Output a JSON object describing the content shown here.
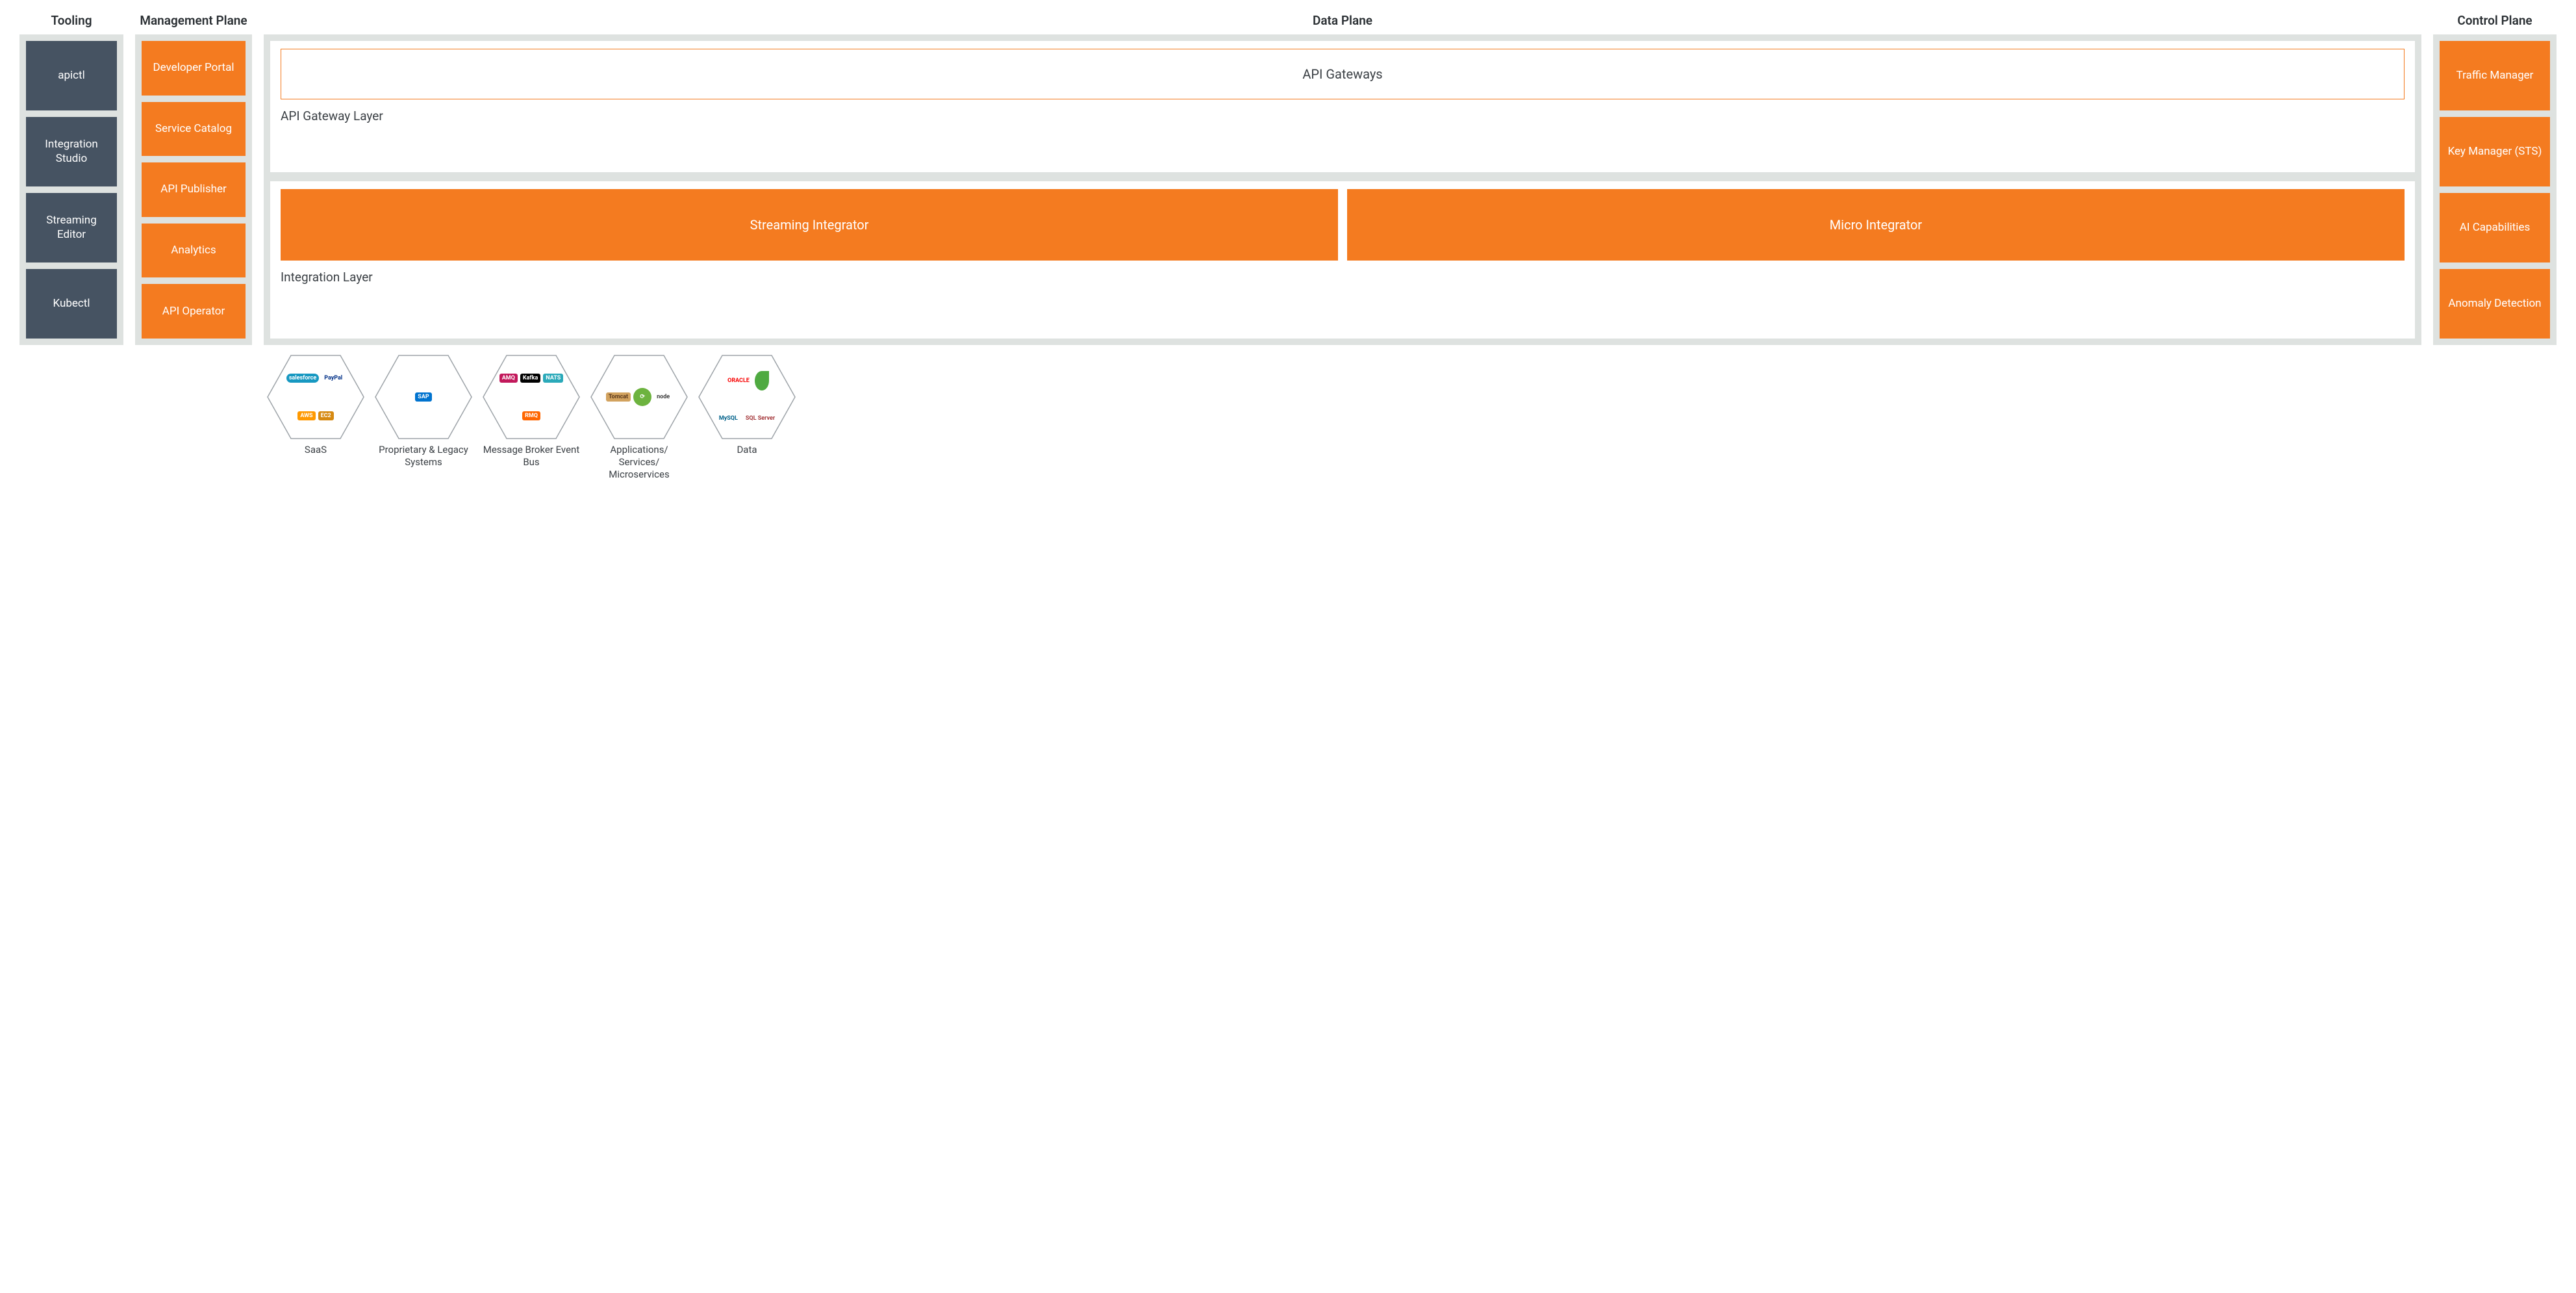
{
  "type": "architecture-diagram",
  "colors": {
    "panel_bg": "#dee2e0",
    "tooling_box_bg": "#465362",
    "orange": "#f47b20",
    "white": "#ffffff",
    "title_text": "#2a2f33",
    "layer_text": "#3b4045",
    "hex_border": "#9da3a8",
    "hex_label": "#3b4045"
  },
  "columns": {
    "tooling": {
      "title": "Tooling",
      "items": [
        "apictl",
        "Integration Studio",
        "Streaming Editor",
        "Kubectl"
      ]
    },
    "management": {
      "title": "Management Plane",
      "items": [
        "Developer Portal",
        "Service Catalog",
        "API Publisher",
        "Analytics",
        "API Operator"
      ]
    },
    "data": {
      "title": "Data Plane",
      "gateway_layer": {
        "box": "API Gateways",
        "label": "API Gateway Layer"
      },
      "integration_layer": {
        "boxes": [
          "Streaming Integrator",
          "Micro Integrator"
        ],
        "label": "Integration Layer"
      }
    },
    "control": {
      "title": "Control Plane",
      "items": [
        "Traffic Manager",
        "Key Manager (STS)",
        "AI Capabilities",
        "Anomaly Detection"
      ]
    }
  },
  "hexagons": [
    {
      "label": "SaaS",
      "logos": [
        {
          "text": "salesforce",
          "bg": "#1798c1",
          "fg": "#ffffff",
          "shape": "cloud"
        },
        {
          "text": "PayPal",
          "bg": "#ffffff",
          "fg": "#003087"
        },
        {
          "text": "AWS",
          "bg": "#ff9900",
          "fg": "#ffffff"
        },
        {
          "text": "EC2",
          "bg": "#d68910",
          "fg": "#ffffff"
        }
      ]
    },
    {
      "label": "Proprietary & Legacy Systems",
      "logos": [
        {
          "text": "SAP",
          "bg": "#0073cf",
          "fg": "#ffffff"
        }
      ]
    },
    {
      "label": "Message Broker Event Bus",
      "logos": [
        {
          "text": "AMQ",
          "bg": "#c2185b",
          "fg": "#ffffff"
        },
        {
          "text": "Kafka",
          "bg": "#000000",
          "fg": "#ffffff"
        },
        {
          "text": "NATS",
          "bg": "#2aa9b9",
          "fg": "#ffffff"
        },
        {
          "text": "RMQ",
          "bg": "#ff6600",
          "fg": "#ffffff"
        }
      ]
    },
    {
      "label": "Applications/ Services/ Microservices",
      "logos": [
        {
          "text": "Tomcat",
          "bg": "#d2a25e",
          "fg": "#5b3a1e"
        },
        {
          "text": "Spring",
          "bg": "#6db33f",
          "fg": "#ffffff",
          "shape": "circle"
        },
        {
          "text": "node",
          "bg": "#ffffff",
          "fg": "#3c3c3c"
        }
      ]
    },
    {
      "label": "Data",
      "logos": [
        {
          "text": "ORACLE",
          "bg": "#ffffff",
          "fg": "#f80000"
        },
        {
          "text": "Mongo",
          "bg": "#4faa41",
          "fg": "#ffffff",
          "shape": "leaf"
        },
        {
          "text": "MySQL",
          "bg": "#ffffff",
          "fg": "#00618a"
        },
        {
          "text": "SQL Server",
          "bg": "#ffffff",
          "fg": "#a4373a"
        }
      ]
    }
  ]
}
